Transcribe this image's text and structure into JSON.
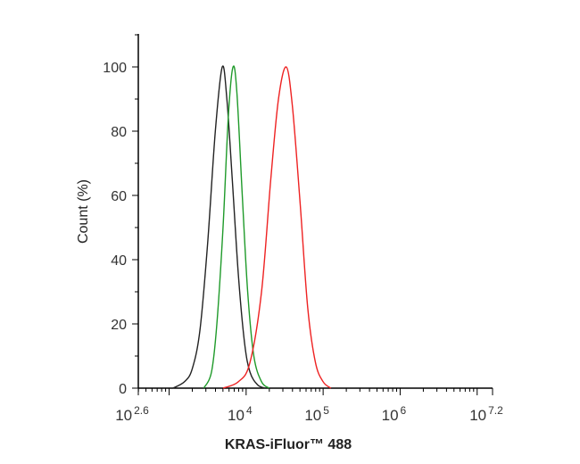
{
  "chart_data": {
    "type": "line",
    "title": "",
    "xlabel": "KRAS-iFluor™ 488",
    "ylabel": "Count (%)",
    "xscale": "log",
    "xlim": [
      398,
      15848932
    ],
    "ylim": [
      0,
      110
    ],
    "grid": false,
    "legend": "none",
    "x_ticks": [
      {
        "base": "10",
        "exp": "2.6",
        "value": 398
      },
      {
        "base": "10",
        "exp": "4",
        "value": 10000
      },
      {
        "base": "10",
        "exp": "5",
        "value": 100000
      },
      {
        "base": "10",
        "exp": "6",
        "value": 1000000
      },
      {
        "base": "10",
        "exp": "7.2",
        "value": 15848932
      }
    ],
    "y_ticks": [
      "0",
      "20",
      "40",
      "60",
      "80",
      "100"
    ],
    "series": [
      {
        "color": "#222222",
        "x": [
          1122,
          1585,
          1995,
          2512,
          3162,
          3981,
          4898,
          5623,
          6607,
          7943,
          9550,
          11220,
          14125,
          17783
        ],
        "y": [
          0,
          2,
          6,
          18,
          45,
          80,
          100,
          90,
          65,
          35,
          14,
          5,
          1,
          0
        ]
      },
      {
        "color": "#1f9a2a",
        "x": [
          2818,
          3548,
          4169,
          5012,
          5888,
          6761,
          7586,
          8913,
          10471,
          12589,
          15849,
          19953
        ],
        "y": [
          0,
          5,
          20,
          50,
          85,
          100,
          92,
          60,
          30,
          10,
          2,
          0
        ]
      },
      {
        "color": "#ee2222",
        "x": [
          5012,
          7943,
          11220,
          15849,
          20893,
          26303,
          33113,
          39811,
          50119,
          63096,
          79433,
          100000,
          125893
        ],
        "y": [
          0,
          2,
          8,
          30,
          65,
          90,
          100,
          88,
          58,
          25,
          8,
          2,
          0
        ]
      }
    ]
  }
}
